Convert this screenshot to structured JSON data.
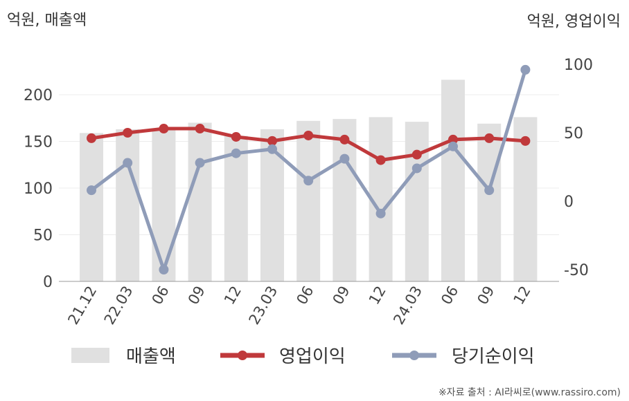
{
  "chart_data": {
    "type": "bar+line",
    "left_axis_title": "억원, 매출액",
    "right_axis_title": "억원, 영업이익",
    "categories": [
      "21.12",
      "22.03",
      "06",
      "09",
      "12",
      "23.03",
      "06",
      "09",
      "12",
      "24.03",
      "06",
      "09",
      "12"
    ],
    "left_ylim": [
      0,
      200
    ],
    "left_ticks": [
      "0",
      "50",
      "100",
      "150",
      "200"
    ],
    "right_ylim": [
      -50,
      100
    ],
    "right_ticks": [
      "-50",
      "0",
      "50",
      "100"
    ],
    "series": [
      {
        "name": "매출액",
        "type": "bar",
        "axis": "left",
        "color": "#e0e0e0",
        "values": [
          159,
          163,
          163,
          170,
          156,
          163,
          172,
          174,
          176,
          171,
          216,
          169,
          176
        ]
      },
      {
        "name": "영업이익",
        "type": "line",
        "axis": "right",
        "color": "#c0393b",
        "values": [
          46,
          50,
          53,
          53,
          47,
          44,
          48,
          45,
          30,
          34,
          45,
          46,
          44
        ]
      },
      {
        "name": "당기순이익",
        "type": "line",
        "axis": "right",
        "color": "#8f9cb8",
        "values": [
          8,
          28,
          -50,
          28,
          35,
          38,
          15,
          31,
          -9,
          24,
          40,
          8,
          96
        ]
      }
    ],
    "grid": true,
    "legend": "bottom"
  },
  "source": "※자료 출처 : AI라씨로(www.rassiro.com)"
}
